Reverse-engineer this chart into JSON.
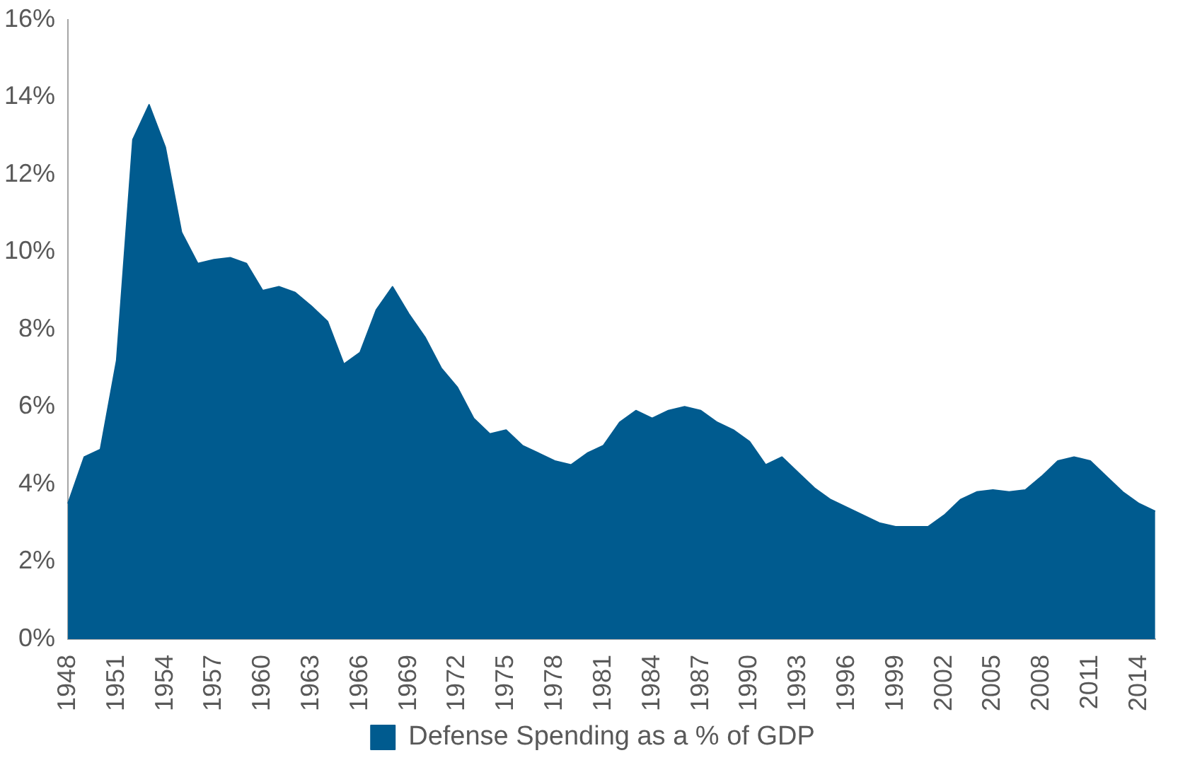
{
  "chart_data": {
    "type": "area",
    "categories": [
      "1948",
      null,
      null,
      "1951",
      null,
      null,
      "1954",
      null,
      null,
      "1957",
      null,
      null,
      "1960",
      null,
      null,
      "1963",
      null,
      null,
      "1966",
      null,
      null,
      "1969",
      null,
      null,
      "1972",
      null,
      null,
      "1975",
      null,
      null,
      "1978",
      null,
      null,
      "1981",
      null,
      null,
      "1984",
      null,
      null,
      "1987",
      null,
      null,
      "1990",
      null,
      null,
      "1993",
      null,
      null,
      "1996",
      null,
      null,
      "1999",
      null,
      null,
      "2002",
      null,
      null,
      "2005",
      null,
      null,
      "2008",
      null,
      null,
      "2011",
      null,
      null,
      "2014",
      null
    ],
    "series": [
      {
        "name": "Defense Spending as a % of GDP",
        "color": "#005b8f",
        "values": [
          3.5,
          4.7,
          4.9,
          7.2,
          12.9,
          13.8,
          12.7,
          10.5,
          9.7,
          9.8,
          9.85,
          9.7,
          9.0,
          9.1,
          8.95,
          8.6,
          8.2,
          7.1,
          7.4,
          8.5,
          9.1,
          8.4,
          7.8,
          7.0,
          6.5,
          5.7,
          5.3,
          5.4,
          5.0,
          4.8,
          4.6,
          4.5,
          4.8,
          5.0,
          5.6,
          5.9,
          5.7,
          5.9,
          6.0,
          5.9,
          5.6,
          5.4,
          5.1,
          4.5,
          4.7,
          4.3,
          3.9,
          3.6,
          3.4,
          3.2,
          3.0,
          2.9,
          2.9,
          2.9,
          3.2,
          3.6,
          3.8,
          3.85,
          3.8,
          3.85,
          4.2,
          4.6,
          4.7,
          4.6,
          4.2,
          3.8,
          3.5,
          3.3
        ]
      }
    ],
    "ylim": [
      0,
      16
    ],
    "yticks": [
      {
        "value": 0,
        "label": "0%"
      },
      {
        "value": 2,
        "label": "2%"
      },
      {
        "value": 4,
        "label": "4%"
      },
      {
        "value": 6,
        "label": "6%"
      },
      {
        "value": 8,
        "label": "8%"
      },
      {
        "value": 10,
        "label": "10%"
      },
      {
        "value": 12,
        "label": "12%"
      },
      {
        "value": 14,
        "label": "14%"
      },
      {
        "value": 16,
        "label": "16%"
      }
    ],
    "grid": false,
    "legend": "bottom",
    "marker": "none"
  }
}
